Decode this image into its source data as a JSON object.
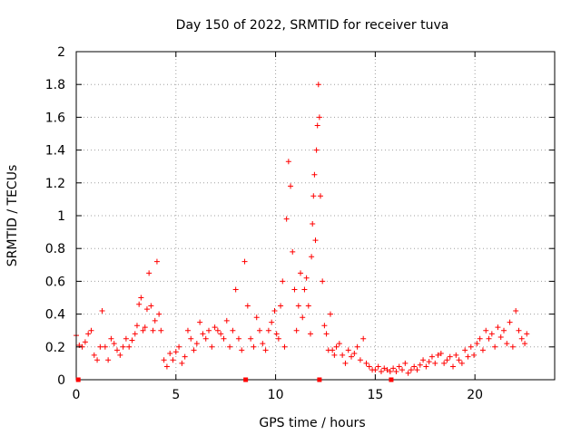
{
  "chart_data": {
    "type": "scatter",
    "title": "Day 150 of 2022, SRMTID for receiver tuva",
    "xlabel": "GPS time / hours",
    "ylabel": "SRMTID / TECUs",
    "xlim": [
      0,
      24.0
    ],
    "ylim": [
      0,
      2
    ],
    "xticks": [
      0,
      5,
      10,
      15,
      20
    ],
    "xtick_labels": [
      "0",
      "5",
      "10",
      "15",
      "20"
    ],
    "yticks": [
      0,
      0.2,
      0.4,
      0.6,
      0.8,
      1,
      1.2,
      1.4,
      1.6,
      1.8,
      2
    ],
    "ytick_labels": [
      "0",
      "0.2",
      "0.4",
      "0.6",
      "0.8",
      "1",
      "1.2",
      "1.4",
      "1.6",
      "1.8",
      "2"
    ],
    "grid": true,
    "marker": "+",
    "color": "#ff0000",
    "x_axis_markers": [
      0.1,
      8.5,
      12.2,
      15.8
    ],
    "series": [
      {
        "name": "SRMTID",
        "x": [
          0.0,
          0.15,
          0.3,
          0.45,
          0.6,
          0.75,
          0.9,
          1.05,
          1.2,
          1.3,
          1.45,
          1.6,
          1.75,
          1.9,
          2.05,
          2.2,
          2.35,
          2.5,
          2.65,
          2.8,
          2.95,
          3.05,
          3.15,
          3.25,
          3.35,
          3.45,
          3.55,
          3.65,
          3.75,
          3.85,
          3.95,
          4.05,
          4.15,
          4.25,
          4.4,
          4.55,
          4.7,
          4.85,
          5.0,
          5.15,
          5.3,
          5.45,
          5.6,
          5.75,
          5.9,
          6.05,
          6.2,
          6.35,
          6.5,
          6.65,
          6.8,
          6.95,
          7.1,
          7.25,
          7.4,
          7.55,
          7.7,
          7.85,
          8.0,
          8.15,
          8.3,
          8.45,
          8.6,
          8.75,
          8.9,
          9.05,
          9.2,
          9.35,
          9.5,
          9.65,
          9.8,
          9.95,
          10.05,
          10.15,
          10.25,
          10.35,
          10.45,
          10.55,
          10.65,
          10.75,
          10.85,
          10.95,
          11.05,
          11.15,
          11.25,
          11.35,
          11.45,
          11.55,
          11.65,
          11.75,
          11.8,
          11.85,
          11.9,
          11.95,
          12.0,
          12.05,
          12.1,
          12.15,
          12.2,
          12.25,
          12.35,
          12.45,
          12.55,
          12.65,
          12.75,
          12.85,
          12.95,
          13.05,
          13.2,
          13.35,
          13.5,
          13.65,
          13.8,
          13.95,
          14.1,
          14.25,
          14.4,
          14.55,
          14.7,
          14.85,
          15.0,
          15.15,
          15.3,
          15.45,
          15.6,
          15.75,
          15.9,
          16.05,
          16.2,
          16.35,
          16.5,
          16.65,
          16.8,
          16.95,
          17.1,
          17.25,
          17.4,
          17.55,
          17.7,
          17.85,
          18.0,
          18.15,
          18.3,
          18.45,
          18.6,
          18.75,
          18.9,
          19.05,
          19.2,
          19.35,
          19.5,
          19.65,
          19.8,
          19.95,
          20.1,
          20.25,
          20.4,
          20.55,
          20.7,
          20.85,
          21.0,
          21.15,
          21.3,
          21.45,
          21.6,
          21.75,
          21.9,
          22.05,
          22.2,
          22.35,
          22.5,
          22.6
        ],
        "y": [
          0.27,
          0.21,
          0.2,
          0.23,
          0.28,
          0.3,
          0.15,
          0.12,
          0.2,
          0.42,
          0.2,
          0.12,
          0.25,
          0.22,
          0.18,
          0.15,
          0.2,
          0.25,
          0.2,
          0.24,
          0.28,
          0.33,
          0.46,
          0.5,
          0.3,
          0.32,
          0.43,
          0.65,
          0.45,
          0.3,
          0.36,
          0.72,
          0.4,
          0.3,
          0.12,
          0.08,
          0.16,
          0.12,
          0.17,
          0.2,
          0.1,
          0.14,
          0.3,
          0.25,
          0.18,
          0.22,
          0.35,
          0.28,
          0.25,
          0.3,
          0.2,
          0.32,
          0.3,
          0.28,
          0.25,
          0.36,
          0.2,
          0.3,
          0.55,
          0.25,
          0.18,
          0.72,
          0.45,
          0.25,
          0.2,
          0.38,
          0.3,
          0.22,
          0.18,
          0.3,
          0.35,
          0.42,
          0.28,
          0.25,
          0.45,
          0.6,
          0.2,
          0.98,
          1.33,
          1.18,
          0.78,
          0.55,
          0.3,
          0.45,
          0.65,
          0.38,
          0.55,
          0.62,
          0.45,
          0.28,
          0.75,
          0.95,
          1.12,
          1.25,
          0.85,
          1.4,
          1.55,
          1.8,
          1.6,
          1.12,
          0.6,
          0.33,
          0.28,
          0.18,
          0.4,
          0.18,
          0.15,
          0.2,
          0.22,
          0.15,
          0.1,
          0.18,
          0.14,
          0.16,
          0.2,
          0.12,
          0.25,
          0.1,
          0.08,
          0.06,
          0.06,
          0.08,
          0.05,
          0.07,
          0.06,
          0.05,
          0.07,
          0.05,
          0.08,
          0.06,
          0.1,
          0.04,
          0.06,
          0.08,
          0.06,
          0.09,
          0.12,
          0.08,
          0.11,
          0.14,
          0.1,
          0.15,
          0.16,
          0.1,
          0.12,
          0.14,
          0.08,
          0.15,
          0.12,
          0.1,
          0.18,
          0.14,
          0.2,
          0.15,
          0.22,
          0.25,
          0.18,
          0.3,
          0.25,
          0.28,
          0.2,
          0.32,
          0.26,
          0.3,
          0.22,
          0.35,
          0.2,
          0.42,
          0.3,
          0.25,
          0.22,
          0.28
        ]
      }
    ]
  }
}
